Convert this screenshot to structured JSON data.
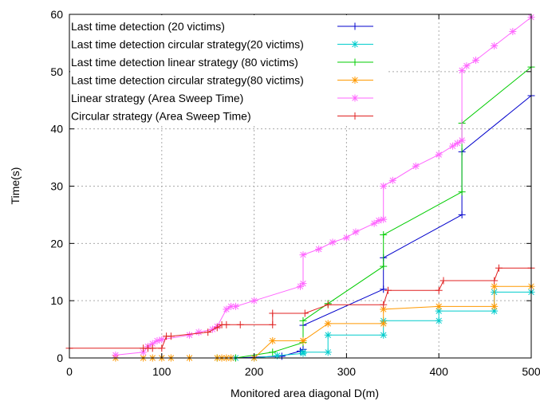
{
  "chart_data": {
    "type": "line",
    "title": "",
    "xlabel": "Monitored area diagonal D(m)",
    "ylabel": "Time(s)",
    "xlim": [
      0,
      500
    ],
    "ylim": [
      0,
      60
    ],
    "xticks": [
      "0",
      "100",
      "200",
      "300",
      "400",
      "500"
    ],
    "yticks": [
      "0",
      "10",
      "20",
      "30",
      "40",
      "50",
      "60"
    ],
    "grid": true,
    "legend_position": "top-left",
    "series": [
      {
        "name": "Last time detection  (20 victims)",
        "color": "#0000cc",
        "marker": "plus",
        "x": [
          180,
          230,
          250,
          253,
          253,
          340,
          340,
          425,
          425,
          500
        ],
        "y": [
          0,
          0.3,
          1.2,
          1.5,
          5.7,
          12,
          17.5,
          25,
          36,
          45.8
        ]
      },
      {
        "name": "Last time detection circular strategy(20 victims)",
        "color": "#00cccc",
        "marker": "star",
        "x": [
          180,
          200,
          225,
          253,
          253,
          280,
          280,
          340,
          340,
          400,
          400,
          460,
          460,
          500
        ],
        "y": [
          0,
          0,
          0.4,
          0.8,
          1,
          1,
          4,
          4,
          6.5,
          6.5,
          8.2,
          8.2,
          11.5,
          11.5
        ]
      },
      {
        "name": "Last time detection linear strategy (80 victims)",
        "color": "#00cc00",
        "marker": "plus",
        "x": [
          160,
          180,
          220,
          253,
          253,
          280,
          340,
          340,
          425,
          425,
          500
        ],
        "y": [
          0,
          0,
          1,
          2.7,
          6.5,
          9.5,
          16,
          21.5,
          29,
          41,
          50.8
        ]
      },
      {
        "name": "Last time detection circular strategy(80 victims)",
        "color": "#ff9900",
        "marker": "star",
        "x": [
          50,
          80,
          90,
          100,
          110,
          130,
          160,
          165,
          170,
          175,
          200,
          220,
          253,
          253,
          280,
          340,
          340,
          400,
          460,
          460,
          500
        ],
        "y": [
          0,
          0,
          0,
          0,
          0,
          0,
          0,
          0,
          0,
          0,
          0,
          3,
          3,
          3,
          6,
          6,
          8.5,
          9,
          9,
          12.5,
          12.5
        ]
      },
      {
        "name": "Linear strategy (Area Sweep Time)",
        "color": "#ff66ff",
        "marker": "star",
        "x": [
          50,
          80,
          85,
          90,
          95,
          100,
          130,
          140,
          155,
          160,
          170,
          175,
          180,
          200,
          250,
          253,
          253,
          270,
          285,
          300,
          310,
          330,
          335,
          340,
          340,
          350,
          375,
          400,
          415,
          420,
          425,
          425,
          430,
          440,
          460,
          480,
          500
        ],
        "y": [
          0.5,
          1,
          2,
          2.5,
          3,
          3.2,
          4,
          4.5,
          5,
          5.5,
          8.5,
          9,
          9,
          10,
          12.5,
          13,
          18,
          19,
          20.2,
          21,
          22,
          23.5,
          24,
          24.2,
          30,
          31,
          33.5,
          35.5,
          37,
          37.5,
          38,
          50.2,
          51,
          52,
          54.5,
          57,
          59.5
        ]
      },
      {
        "name": "Circular strategy (Area Sweep Time)",
        "color": "#e02020",
        "marker": "plus",
        "x": [
          0,
          80,
          85,
          90,
          100,
          105,
          110,
          150,
          160,
          165,
          170,
          185,
          220,
          220,
          255,
          280,
          340,
          345,
          400,
          405,
          460,
          465,
          500
        ],
        "y": [
          1.7,
          1.7,
          1.7,
          1.7,
          1.7,
          3.8,
          3.8,
          4.5,
          5.3,
          5.8,
          5.8,
          5.8,
          5.8,
          7.8,
          7.8,
          9.3,
          9.3,
          11.8,
          11.8,
          13.5,
          13.5,
          15.7,
          15.7
        ]
      }
    ]
  }
}
